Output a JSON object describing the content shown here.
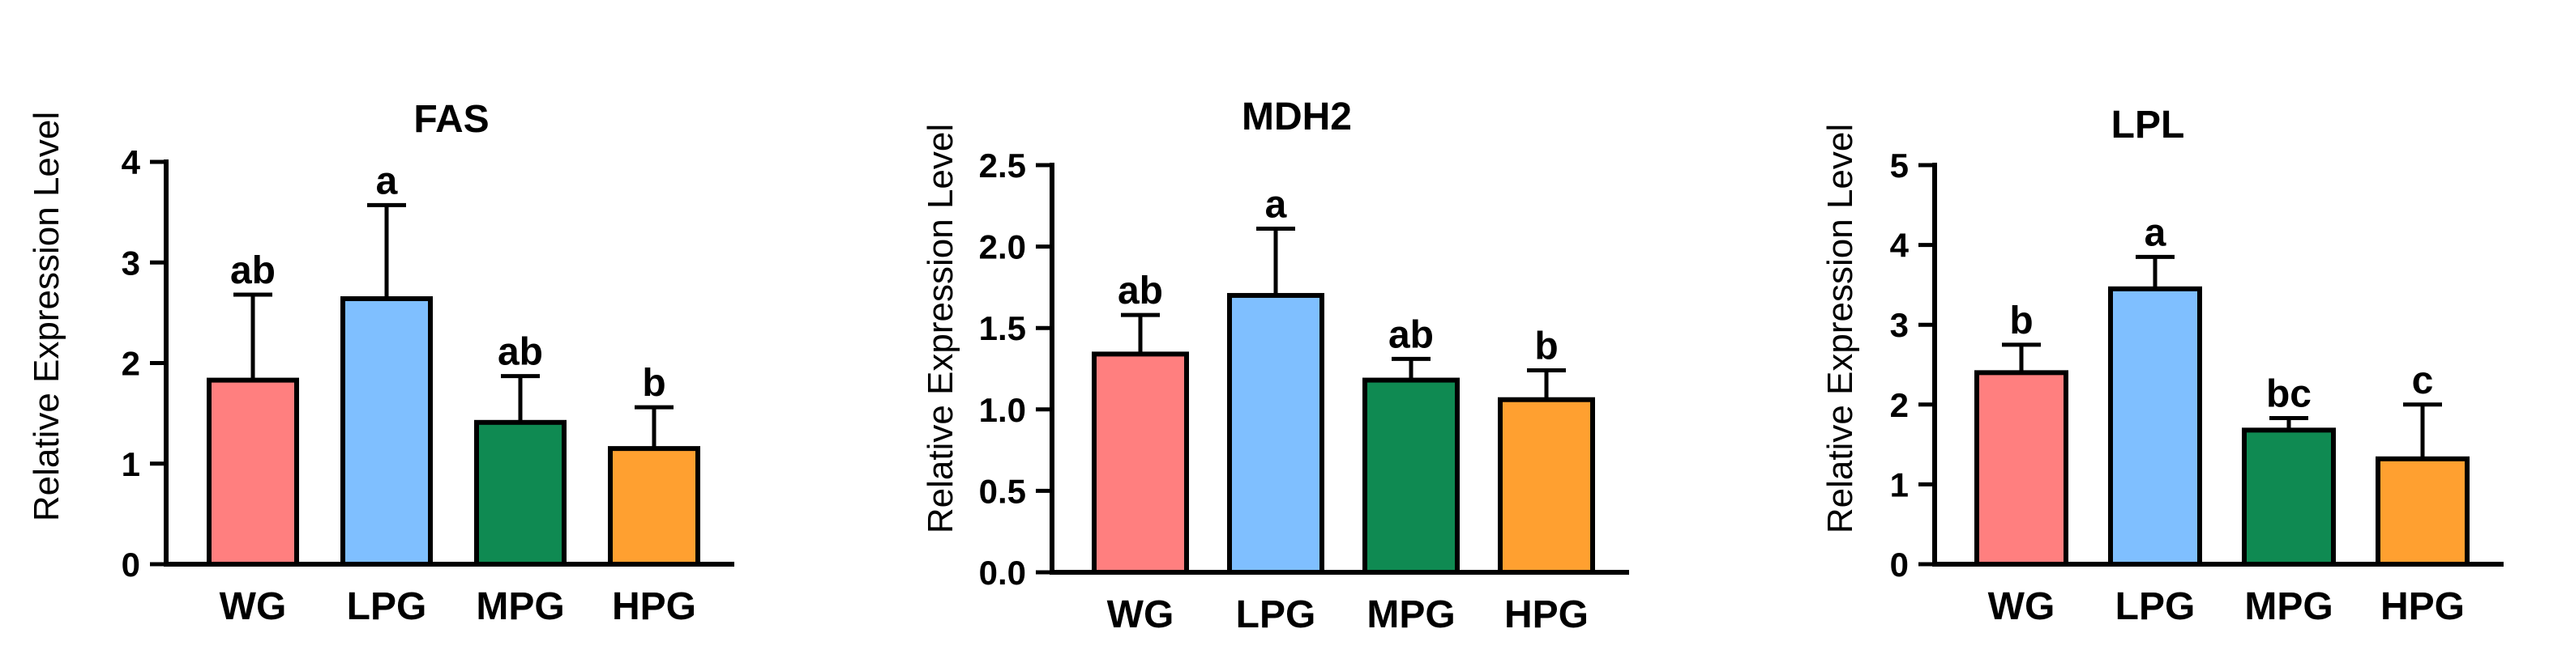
{
  "chart_data": [
    {
      "type": "bar",
      "title": "FAS",
      "xlabel": "",
      "ylabel": "Relative Expression Level",
      "categories": [
        "WG",
        "LPG",
        "MPG",
        "HPG"
      ],
      "values": [
        1.83,
        2.64,
        1.41,
        1.15
      ],
      "errors": [
        0.85,
        0.93,
        0.46,
        0.41
      ],
      "significance": [
        "ab",
        "a",
        "ab",
        "b"
      ],
      "colors": [
        "#FF7F7F",
        "#7FBFFF",
        "#0F8A52",
        "#FFA030"
      ],
      "ylim": [
        0,
        4
      ],
      "yticks": [
        0,
        1,
        2,
        3,
        4
      ],
      "ytick_labels": [
        "0",
        "1",
        "2",
        "3",
        "4"
      ]
    },
    {
      "type": "bar",
      "title": "MDH2",
      "xlabel": "",
      "ylabel": "Relative Expression Level",
      "categories": [
        "WG",
        "LPG",
        "MPG",
        "HPG"
      ],
      "values": [
        1.34,
        1.7,
        1.18,
        1.06
      ],
      "errors": [
        0.24,
        0.41,
        0.13,
        0.18
      ],
      "significance": [
        "ab",
        "a",
        "ab",
        "b"
      ],
      "colors": [
        "#FF7F7F",
        "#7FBFFF",
        "#0F8A52",
        "#FFA030"
      ],
      "ylim": [
        0,
        2.5
      ],
      "yticks": [
        0,
        0.5,
        1,
        1.5,
        2,
        2.5
      ],
      "ytick_labels": [
        "0.0",
        "0.5",
        "1.0",
        "1.5",
        "2.0",
        "2.5"
      ]
    },
    {
      "type": "bar",
      "title": "LPL",
      "xlabel": "",
      "ylabel": "Relative Expression Level",
      "categories": [
        "WG",
        "LPG",
        "MPG",
        "HPG"
      ],
      "values": [
        2.4,
        3.45,
        1.68,
        1.32
      ],
      "errors": [
        0.35,
        0.4,
        0.15,
        0.68
      ],
      "significance": [
        "b",
        "a",
        "bc",
        "c"
      ],
      "colors": [
        "#FF7F7F",
        "#7FBFFF",
        "#0F8A52",
        "#FFA030"
      ],
      "ylim": [
        0,
        5
      ],
      "yticks": [
        0,
        1,
        2,
        3,
        4,
        5
      ],
      "ytick_labels": [
        "0",
        "1",
        "2",
        "3",
        "4",
        "5"
      ]
    }
  ]
}
